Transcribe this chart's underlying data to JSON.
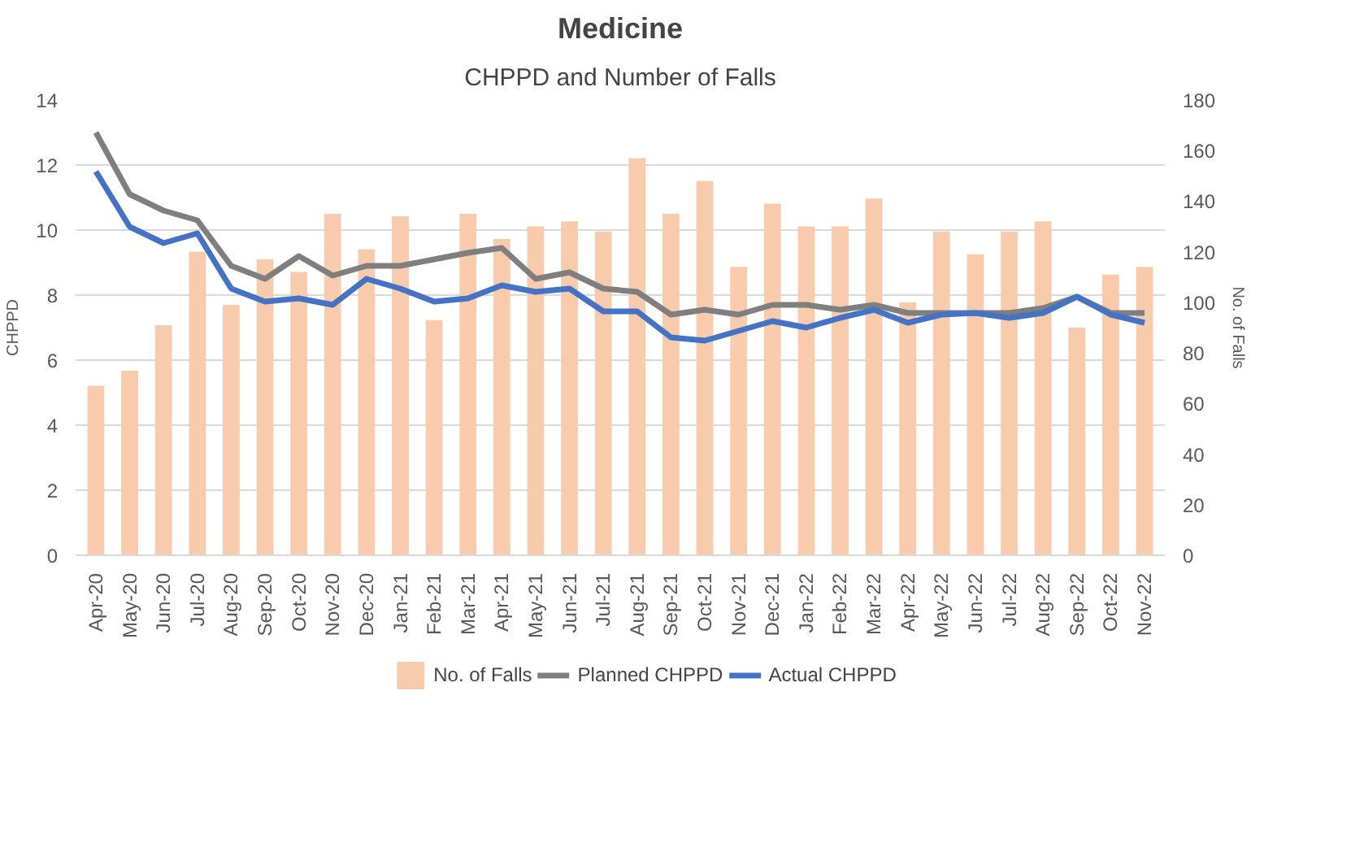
{
  "chart_data": {
    "type": "bar",
    "title": "Medicine",
    "subtitle": "CHPPD and Number of Falls",
    "ylabel": "CHPPD",
    "y2label": "No. of Falls",
    "categories": [
      "Apr-20",
      "May-20",
      "Jun-20",
      "Jul-20",
      "Aug-20",
      "Sep-20",
      "Oct-20",
      "Nov-20",
      "Dec-20",
      "Jan-21",
      "Feb-21",
      "Mar-21",
      "Apr-21",
      "May-21",
      "Jun-21",
      "Jul-21",
      "Aug-21",
      "Sep-21",
      "Oct-21",
      "Nov-21",
      "Dec-21",
      "Jan-22",
      "Feb-22",
      "Mar-22",
      "Apr-22",
      "May-22",
      "Jun-22",
      "Jul-22",
      "Aug-22",
      "Sep-22",
      "Oct-22",
      "Nov-22"
    ],
    "series": [
      {
        "name": "No. of Falls",
        "axis": "y2",
        "color": "#f8cbad",
        "values": [
          67,
          73,
          91,
          120,
          99,
          117,
          112,
          135,
          121,
          134,
          93,
          135,
          125,
          130,
          132,
          128,
          157,
          135,
          148,
          114,
          139,
          130,
          130,
          141,
          100,
          128,
          119,
          128,
          132,
          90,
          111,
          114
        ]
      },
      {
        "name": "Planned CHPPD",
        "type": "line",
        "color": "#7f7f7f",
        "values": [
          13.0,
          11.1,
          10.6,
          10.3,
          8.9,
          8.5,
          9.2,
          8.6,
          8.9,
          8.9,
          9.1,
          9.3,
          9.45,
          8.5,
          8.7,
          8.2,
          8.1,
          7.4,
          7.55,
          7.4,
          7.7,
          7.7,
          7.55,
          7.7,
          7.45,
          7.45,
          7.45,
          7.45,
          7.6,
          7.95,
          7.45,
          7.45
        ]
      },
      {
        "name": "Actual CHPPD",
        "type": "line",
        "color": "#4472c4",
        "values": [
          11.8,
          10.1,
          9.6,
          9.9,
          8.2,
          7.8,
          7.9,
          7.7,
          8.5,
          8.2,
          7.8,
          7.9,
          8.3,
          8.1,
          8.2,
          7.5,
          7.5,
          6.7,
          6.6,
          6.9,
          7.2,
          7.0,
          7.3,
          7.55,
          7.15,
          7.4,
          7.45,
          7.3,
          7.45,
          7.95,
          7.4,
          7.15
        ]
      }
    ],
    "ylim": [
      0,
      14
    ],
    "yticks": [
      0,
      2,
      4,
      6,
      8,
      10,
      12,
      14
    ],
    "y2lim": [
      0,
      180
    ],
    "y2ticks": [
      0,
      20,
      40,
      60,
      80,
      100,
      120,
      140,
      160,
      180
    ],
    "grid": "y",
    "legend": "bottom",
    "line_style": "solid",
    "marker": "none"
  }
}
